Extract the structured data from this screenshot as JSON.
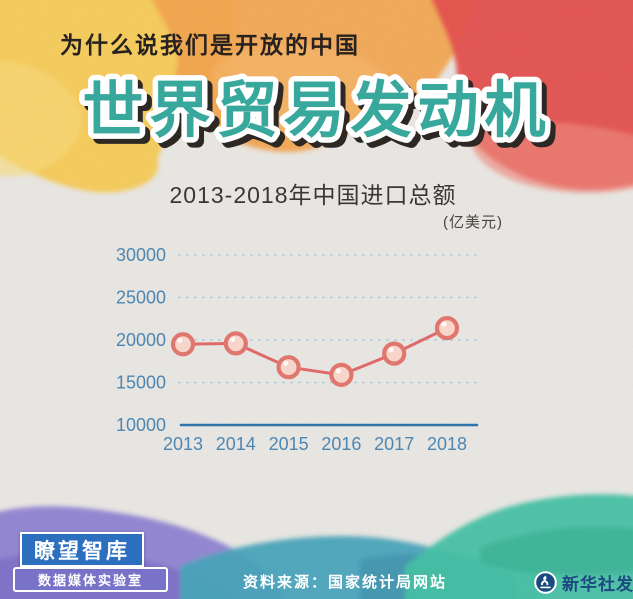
{
  "header": {
    "slogan": "为什么说我们是开放的中国",
    "main_title": "世界贸易发动机"
  },
  "chart": {
    "title": "2013-2018年中国进口总额",
    "unit": "(亿美元)"
  },
  "chart_data": {
    "type": "line",
    "title": "2013-2018年中国进口总额",
    "unit_label": "(亿美元)",
    "categories": [
      "2013",
      "2014",
      "2015",
      "2016",
      "2017",
      "2018"
    ],
    "values": [
      19500,
      19600,
      16800,
      15900,
      18400,
      21400
    ],
    "yticks": [
      10000,
      15000,
      20000,
      25000,
      30000
    ],
    "ylim": [
      10000,
      31000
    ],
    "grid": "horizontal-dashed",
    "legend": "none",
    "style": {
      "line_color": "#e0696a",
      "marker_fill": "#f8d5cb",
      "marker_stroke": "#e0776f",
      "axis_color": "#2e74a8",
      "label_color": "#4e86b2",
      "grid_color": "#b6cbd6"
    }
  },
  "footer": {
    "logo_title": "瞭望智库",
    "logo_subtitle": "数据媒体实验室",
    "source": "资料来源：国家统计局网站",
    "agency_credit": "新华社发"
  },
  "palette": {
    "paper": "#eae8e4",
    "blob_yellow": "#f6c64a",
    "blob_orange": "#f2a24e",
    "blob_red": "#e4504e",
    "blob_purple": "#8f82d2",
    "blob_blue_teal": "#4aa4bc",
    "blob_green": "#46c1a5",
    "title_teal": "#38a89d",
    "logo_blue": "#2d6fbf",
    "agency_navy": "#1b4a80"
  }
}
